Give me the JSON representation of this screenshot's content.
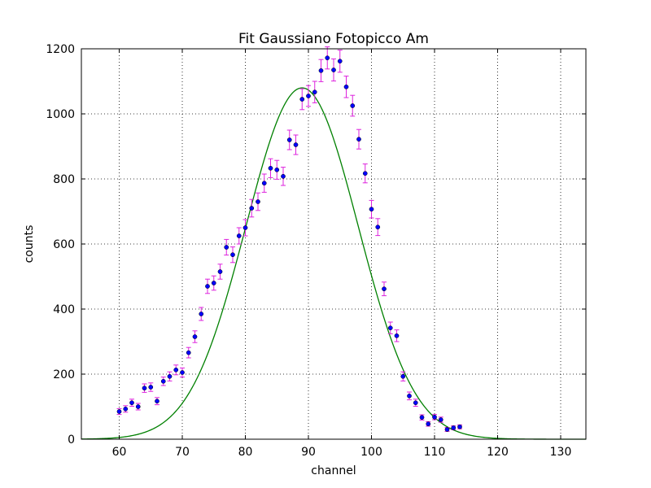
{
  "chart_data": {
    "type": "scatter",
    "title": "Fit Gaussiano Fotopicco Am",
    "xlabel": "channel",
    "ylabel": "counts",
    "xlim": [
      54,
      134
    ],
    "ylim": [
      0,
      1200
    ],
    "xticks": [
      60,
      70,
      80,
      90,
      100,
      110,
      120,
      130
    ],
    "yticks": [
      0,
      200,
      400,
      600,
      800,
      1000,
      1200
    ],
    "grid": true,
    "colors": {
      "points": "#0000ff",
      "errorbars": "#dd22dd",
      "fit": "#008000"
    },
    "series": [
      {
        "type": "errorbar",
        "x": [
          60,
          61,
          62,
          63,
          64,
          65,
          66,
          67,
          68,
          69,
          70,
          71,
          72,
          73,
          74,
          75,
          76,
          77,
          78,
          79,
          80,
          81,
          82,
          83,
          84,
          85,
          86,
          87,
          88,
          89,
          90,
          91,
          92,
          93,
          94,
          95,
          96,
          97,
          98,
          99,
          100,
          101,
          102,
          103,
          104,
          105,
          106,
          107,
          108,
          109,
          110,
          111,
          112,
          113,
          114
        ],
        "y": [
          85,
          93,
          112,
          100,
          157,
          160,
          117,
          178,
          193,
          213,
          205,
          266,
          315,
          385,
          470,
          480,
          515,
          590,
          567,
          625,
          650,
          710,
          730,
          787,
          833,
          828,
          808,
          920,
          905,
          1045,
          1055,
          1067,
          1133,
          1172,
          1135,
          1162,
          1083,
          1025,
          922,
          817,
          707,
          652,
          462,
          342,
          318,
          193,
          133,
          112,
          67,
          47,
          68,
          60,
          30,
          35,
          38
        ],
        "yerr": [
          9,
          10,
          11,
          10,
          13,
          13,
          11,
          13,
          14,
          15,
          14,
          16,
          18,
          20,
          22,
          22,
          23,
          24,
          24,
          25,
          25,
          27,
          27,
          28,
          29,
          29,
          28,
          30,
          30,
          32,
          32,
          33,
          34,
          34,
          34,
          34,
          33,
          32,
          30,
          29,
          27,
          26,
          21,
          18,
          18,
          14,
          12,
          11,
          8,
          7,
          8,
          8,
          6,
          6,
          6
        ]
      },
      {
        "type": "line",
        "model": "gaussian",
        "amplitude": 1080,
        "mean": 89,
        "sigma": 8.9
      }
    ]
  }
}
